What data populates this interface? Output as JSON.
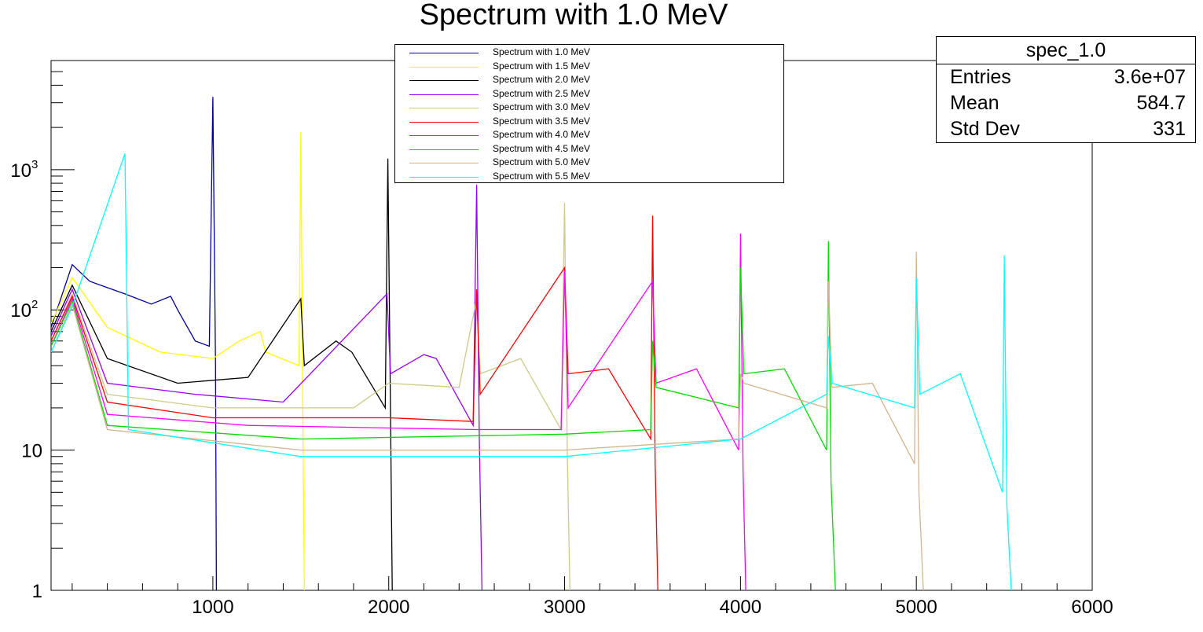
{
  "title": "Spectrum with 1.0 MeV",
  "stats": {
    "name": "spec_1.0",
    "rows": [
      {
        "key": "Entries",
        "value": "3.6e+07"
      },
      {
        "key": "Mean",
        "value": "584.7"
      },
      {
        "key": "Std Dev",
        "value": "331"
      }
    ]
  },
  "legend": [
    {
      "label": "Spectrum with 1.0 MeV",
      "color": "#000099"
    },
    {
      "label": "Spectrum with 1.5 MeV",
      "color": "#ffff00"
    },
    {
      "label": "Spectrum with 2.0 MeV",
      "color": "#000000"
    },
    {
      "label": "Spectrum with 2.5 MeV",
      "color": "#9900ff"
    },
    {
      "label": "Spectrum with 3.0 MeV",
      "color": "#cccc88"
    },
    {
      "label": "Spectrum with 3.5 MeV",
      "color": "#ff0000"
    },
    {
      "label": "Spectrum with 4.0 MeV",
      "color": "#ff00ff"
    },
    {
      "label": "Spectrum with 4.5 MeV",
      "color": "#00dd00"
    },
    {
      "label": "Spectrum with 5.0 MeV",
      "color": "#d2b48c"
    },
    {
      "label": "Spectrum with 5.5 MeV",
      "color": "#00ffff"
    }
  ],
  "chart_data": {
    "type": "line",
    "title": "Spectrum with 1.0 MeV",
    "xlabel": "",
    "ylabel": "",
    "xlim": [
      80,
      6000
    ],
    "ylim": [
      1,
      6000
    ],
    "ylog": true,
    "x_ticks": [
      1000,
      2000,
      3000,
      4000,
      5000,
      6000
    ],
    "y_ticks": [
      {
        "value": 1,
        "label": "1"
      },
      {
        "value": 10,
        "label": "10"
      },
      {
        "value": 100,
        "label": "10",
        "sup": "2"
      },
      {
        "value": 1000,
        "label": "10",
        "sup": "3"
      }
    ],
    "series": [
      {
        "name": "Spectrum with 1.0 MeV",
        "color": "#000099",
        "points": [
          [
            80,
            75
          ],
          [
            200,
            210
          ],
          [
            300,
            160
          ],
          [
            500,
            130
          ],
          [
            650,
            110
          ],
          [
            760,
            125
          ],
          [
            800,
            100
          ],
          [
            900,
            60
          ],
          [
            980,
            55
          ],
          [
            1000,
            3300
          ],
          [
            1015,
            40
          ],
          [
            1020,
            1
          ]
        ]
      },
      {
        "name": "Spectrum with 1.5 MeV",
        "color": "#ffff00",
        "points": [
          [
            80,
            80
          ],
          [
            200,
            170
          ],
          [
            400,
            75
          ],
          [
            700,
            50
          ],
          [
            1000,
            45
          ],
          [
            1150,
            60
          ],
          [
            1270,
            70
          ],
          [
            1300,
            50
          ],
          [
            1490,
            40
          ],
          [
            1500,
            1850
          ],
          [
            1510,
            30
          ],
          [
            1520,
            1
          ]
        ]
      },
      {
        "name": "Spectrum with 2.0 MeV",
        "color": "#000000",
        "points": [
          [
            80,
            70
          ],
          [
            200,
            150
          ],
          [
            400,
            45
          ],
          [
            800,
            30
          ],
          [
            1200,
            33
          ],
          [
            1500,
            120
          ],
          [
            1520,
            40
          ],
          [
            1700,
            60
          ],
          [
            1790,
            50
          ],
          [
            1980,
            20
          ],
          [
            1995,
            1200
          ],
          [
            2010,
            18
          ],
          [
            2020,
            1
          ]
        ]
      },
      {
        "name": "Spectrum with 2.5 MeV",
        "color": "#9900ff",
        "points": [
          [
            80,
            65
          ],
          [
            200,
            140
          ],
          [
            400,
            30
          ],
          [
            900,
            25
          ],
          [
            1400,
            22
          ],
          [
            1990,
            130
          ],
          [
            2010,
            35
          ],
          [
            2200,
            48
          ],
          [
            2270,
            45
          ],
          [
            2480,
            15
          ],
          [
            2500,
            780
          ],
          [
            2515,
            12
          ],
          [
            2530,
            1
          ]
        ]
      },
      {
        "name": "Spectrum with 3.0 MeV",
        "color": "#cccc88",
        "points": [
          [
            80,
            60
          ],
          [
            200,
            130
          ],
          [
            400,
            25
          ],
          [
            1000,
            20
          ],
          [
            1800,
            20
          ],
          [
            2000,
            30
          ],
          [
            2400,
            28
          ],
          [
            2500,
            120
          ],
          [
            2520,
            35
          ],
          [
            2750,
            45
          ],
          [
            2980,
            14
          ],
          [
            3000,
            580
          ],
          [
            3015,
            10
          ],
          [
            3030,
            1
          ]
        ]
      },
      {
        "name": "Spectrum with 3.5 MeV",
        "color": "#ff0000",
        "points": [
          [
            80,
            60
          ],
          [
            200,
            125
          ],
          [
            400,
            22
          ],
          [
            1000,
            17
          ],
          [
            2000,
            17
          ],
          [
            2480,
            16
          ],
          [
            2500,
            140
          ],
          [
            2520,
            25
          ],
          [
            3000,
            200
          ],
          [
            3020,
            35
          ],
          [
            3250,
            38
          ],
          [
            3490,
            12
          ],
          [
            3500,
            470
          ],
          [
            3515,
            8
          ],
          [
            3530,
            1
          ]
        ]
      },
      {
        "name": "Spectrum with 4.0 MeV",
        "color": "#ff00ff",
        "points": [
          [
            80,
            55
          ],
          [
            200,
            120
          ],
          [
            400,
            18
          ],
          [
            1200,
            15
          ],
          [
            2500,
            14
          ],
          [
            2980,
            14
          ],
          [
            3000,
            190
          ],
          [
            3020,
            20
          ],
          [
            3500,
            160
          ],
          [
            3520,
            30
          ],
          [
            3750,
            38
          ],
          [
            3990,
            10
          ],
          [
            4000,
            350
          ],
          [
            4015,
            7
          ],
          [
            4030,
            1
          ]
        ]
      },
      {
        "name": "Spectrum with 4.5 MeV",
        "color": "#00dd00",
        "points": [
          [
            80,
            55
          ],
          [
            200,
            115
          ],
          [
            400,
            15
          ],
          [
            1500,
            12
          ],
          [
            3000,
            13
          ],
          [
            3490,
            14
          ],
          [
            3500,
            60
          ],
          [
            3520,
            28
          ],
          [
            3990,
            20
          ],
          [
            4000,
            200
          ],
          [
            4020,
            35
          ],
          [
            4250,
            38
          ],
          [
            4490,
            10
          ],
          [
            4500,
            310
          ],
          [
            4515,
            6
          ],
          [
            4540,
            1
          ]
        ]
      },
      {
        "name": "Spectrum with 5.0 MeV",
        "color": "#d2b48c",
        "points": [
          [
            80,
            50
          ],
          [
            200,
            110
          ],
          [
            400,
            14
          ],
          [
            1500,
            10
          ],
          [
            3000,
            10
          ],
          [
            3990,
            12
          ],
          [
            4000,
            35
          ],
          [
            4020,
            30
          ],
          [
            4490,
            20
          ],
          [
            4500,
            160
          ],
          [
            4520,
            28
          ],
          [
            4750,
            30
          ],
          [
            4990,
            8
          ],
          [
            5000,
            260
          ],
          [
            5015,
            5
          ],
          [
            5040,
            1
          ]
        ]
      },
      {
        "name": "Spectrum with 5.5 MeV",
        "color": "#00ffff",
        "points": [
          [
            80,
            50
          ],
          [
            200,
            105
          ],
          [
            500,
            1300
          ],
          [
            520,
            14
          ],
          [
            1500,
            9
          ],
          [
            3000,
            9
          ],
          [
            4000,
            12
          ],
          [
            4490,
            25
          ],
          [
            4500,
            65
          ],
          [
            4520,
            30
          ],
          [
            4990,
            20
          ],
          [
            5000,
            170
          ],
          [
            5020,
            25
          ],
          [
            5250,
            35
          ],
          [
            5490,
            5
          ],
          [
            5500,
            245
          ],
          [
            5515,
            4
          ],
          [
            5540,
            1
          ]
        ]
      }
    ]
  }
}
